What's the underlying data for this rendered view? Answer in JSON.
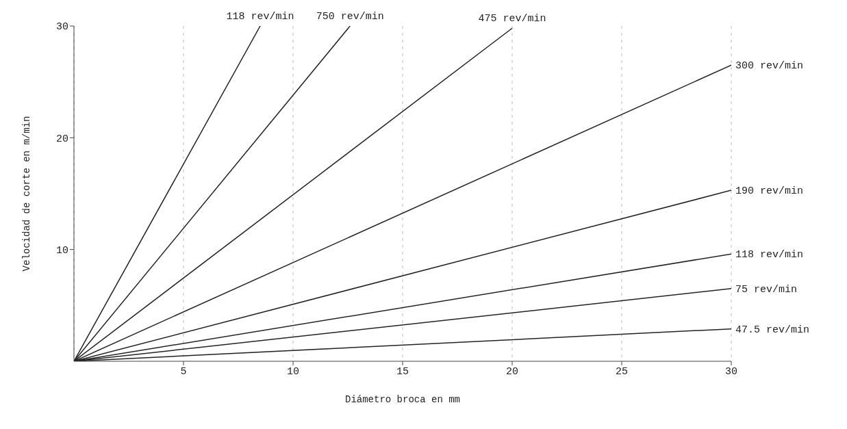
{
  "chart_data": {
    "type": "line",
    "xlabel": "Diámetro broca en mm",
    "ylabel": "Velocidad de corte en m/min",
    "xlim": [
      0,
      30
    ],
    "xticks": [
      5,
      10,
      15,
      20,
      25,
      30
    ],
    "ylim": [
      0,
      30
    ],
    "yticks": [
      10,
      20,
      30
    ],
    "grid": "x",
    "marker": "none",
    "line_style": "solid",
    "series": [
      {
        "name": "118 rev/min",
        "color": "#222222",
        "x": [
          0,
          8.5
        ],
        "values": [
          0,
          30
        ]
      },
      {
        "name": "750 rev/min",
        "color": "#222222",
        "x": [
          0,
          12.6
        ],
        "values": [
          0,
          30
        ]
      },
      {
        "name": "475 rev/min",
        "color": "#222222",
        "x": [
          0,
          20
        ],
        "values": [
          0,
          29.8
        ]
      },
      {
        "name": "300 rev/min",
        "color": "#222222",
        "x": [
          0,
          30
        ],
        "values": [
          0,
          26.5
        ]
      },
      {
        "name": "190 rev/min",
        "color": "#222222",
        "x": [
          0,
          30
        ],
        "values": [
          0,
          15.3
        ]
      },
      {
        "name": "118 rev/min",
        "color": "#222222",
        "x": [
          0,
          30
        ],
        "values": [
          0,
          9.6
        ]
      },
      {
        "name": "75 rev/min",
        "color": "#222222",
        "x": [
          0,
          30
        ],
        "values": [
          0,
          6.5
        ]
      },
      {
        "name": "47.5 rev/min",
        "color": "#222222",
        "x": [
          0,
          30
        ],
        "values": [
          0,
          2.9
        ]
      }
    ]
  }
}
